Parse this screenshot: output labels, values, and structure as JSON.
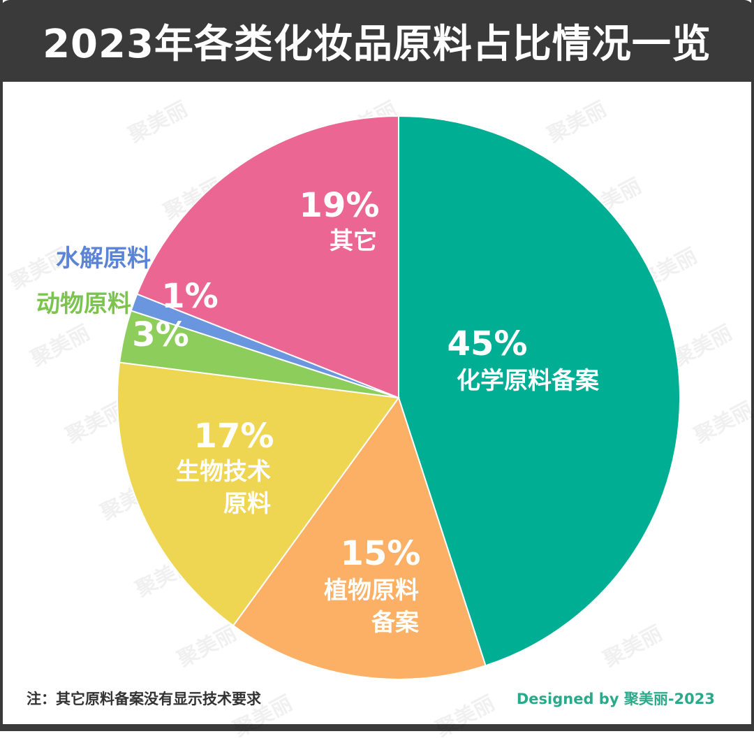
{
  "title": "2023年各类化妆品原料占比情况一览",
  "note": "注：其它原料备案没有显示技术要求",
  "credit": "Designed by 聚美丽-2023",
  "watermark": "聚美丽",
  "chart_data": {
    "type": "pie",
    "title": "2023年各类化妆品原料占比情况一览",
    "start_angle_deg": 0,
    "direction": "clockwise",
    "slices": [
      {
        "label": "化学原料备案",
        "value": 45,
        "display": "45%",
        "color": "#00ae94",
        "label_lines": [
          "化学原料备案"
        ]
      },
      {
        "label": "植物原料备案",
        "value": 15,
        "display": "15%",
        "color": "#fbb065",
        "label_lines": [
          "植物原料",
          "备案"
        ]
      },
      {
        "label": "生物技术原料",
        "value": 17,
        "display": "17%",
        "color": "#eed653",
        "label_lines": [
          "生物技术",
          "原料"
        ]
      },
      {
        "label": "动物原料",
        "value": 3,
        "display": "3%",
        "color": "#8dcd5c",
        "label_lines": [
          "动物原料"
        ],
        "label_color": "#7cc44f"
      },
      {
        "label": "水解原料",
        "value": 1,
        "display": "1%",
        "color": "#6a95df",
        "label_lines": [
          "水解原料"
        ],
        "label_color": "#5b84d6"
      },
      {
        "label": "其它",
        "value": 19,
        "display": "19%",
        "color": "#ec6694",
        "label_lines": [
          "其它"
        ]
      }
    ]
  }
}
